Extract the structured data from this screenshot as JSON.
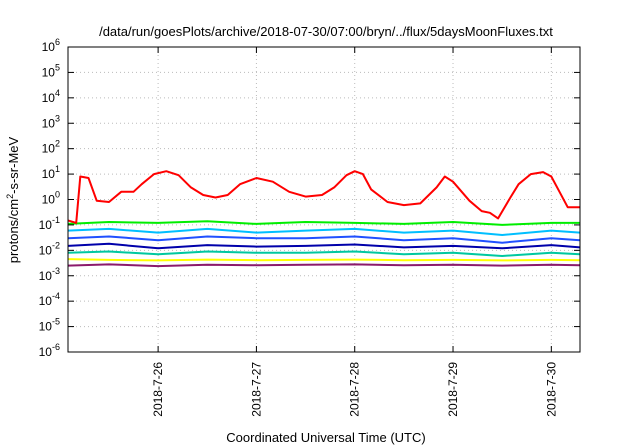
{
  "chart_data": {
    "type": "line",
    "title": "/data/run/goesPlots/archive/2018-07-30/07:00/bryn/../flux/5daysMoonFluxes.txt",
    "xlabel": "Coordinated Universal Time (UTC)",
    "ylabel": {
      "base": "protons/cm",
      "sup": "2",
      "rest": "-s-sr-MeV"
    },
    "y_scale": "log",
    "ylim_exp": [
      -6,
      6
    ],
    "xlim": [
      "2018-07-25T02:00",
      "2018-07-30T07:00"
    ],
    "x_ticks": [
      {
        "label": "2018-7-26",
        "t": "2018-07-26T00:00"
      },
      {
        "label": "2018-7-27",
        "t": "2018-07-27T00:00"
      },
      {
        "label": "2018-7-28",
        "t": "2018-07-28T00:00"
      },
      {
        "label": "2018-7-29",
        "t": "2018-07-29T00:00"
      },
      {
        "label": "2018-7-30",
        "t": "2018-07-30T00:00"
      }
    ],
    "y_ticks": [
      {
        "base": "10",
        "exp": "6"
      },
      {
        "base": "10",
        "exp": "5"
      },
      {
        "base": "10",
        "exp": "4"
      },
      {
        "base": "10",
        "exp": "3"
      },
      {
        "base": "10",
        "exp": "2"
      },
      {
        "base": "10",
        "exp": "1"
      },
      {
        "base": "10",
        "exp": "0"
      },
      {
        "base": "10",
        "exp": "-1"
      },
      {
        "base": "10",
        "exp": "-2"
      },
      {
        "base": "10",
        "exp": "-3"
      },
      {
        "base": "10",
        "exp": "-4"
      },
      {
        "base": "10",
        "exp": "-5"
      },
      {
        "base": "10",
        "exp": "-6"
      }
    ],
    "grid": true,
    "legend": "none",
    "series": [
      {
        "color": "#ff0000",
        "x": [
          "2018-07-25T02:00",
          "2018-07-25T04:00",
          "2018-07-25T05:00",
          "2018-07-25T07:00",
          "2018-07-25T09:00",
          "2018-07-25T12:00",
          "2018-07-25T15:00",
          "2018-07-25T18:00",
          "2018-07-25T20:00",
          "2018-07-25T23:00",
          "2018-07-26T02:00",
          "2018-07-26T05:00",
          "2018-07-26T08:00",
          "2018-07-26T11:00",
          "2018-07-26T14:00",
          "2018-07-26T17:00",
          "2018-07-26T20:00",
          "2018-07-27T00:00",
          "2018-07-27T04:00",
          "2018-07-27T08:00",
          "2018-07-27T12:00",
          "2018-07-27T16:00",
          "2018-07-27T19:00",
          "2018-07-27T22:00",
          "2018-07-28T00:00",
          "2018-07-28T02:00",
          "2018-07-28T04:00",
          "2018-07-28T08:00",
          "2018-07-28T12:00",
          "2018-07-28T16:00",
          "2018-07-28T20:00",
          "2018-07-28T22:00",
          "2018-07-29T00:00",
          "2018-07-29T04:00",
          "2018-07-29T07:00",
          "2018-07-29T09:00",
          "2018-07-29T11:00",
          "2018-07-29T14:00",
          "2018-07-29T16:00",
          "2018-07-29T19:00",
          "2018-07-29T22:00",
          "2018-07-30T00:00",
          "2018-07-30T02:00",
          "2018-07-30T04:00",
          "2018-07-30T07:00"
        ],
        "y": [
          0.15,
          0.12,
          8,
          7,
          0.9,
          0.8,
          2,
          2,
          4,
          10,
          13,
          9,
          3,
          1.5,
          1.2,
          1.5,
          4,
          7,
          5,
          2,
          1.3,
          1.5,
          3,
          9,
          13,
          10,
          2.5,
          0.8,
          0.6,
          0.7,
          3,
          8,
          5,
          0.9,
          0.35,
          0.3,
          0.18,
          1.2,
          4,
          10,
          12,
          8,
          2,
          0.5,
          0.5
        ]
      },
      {
        "color": "#00ee00",
        "x": [
          "2018-07-25T02:00",
          "2018-07-25T12:00",
          "2018-07-26T00:00",
          "2018-07-26T12:00",
          "2018-07-27T00:00",
          "2018-07-27T12:00",
          "2018-07-28T00:00",
          "2018-07-28T12:00",
          "2018-07-29T00:00",
          "2018-07-29T12:00",
          "2018-07-30T00:00",
          "2018-07-30T07:00"
        ],
        "y": [
          0.11,
          0.13,
          0.12,
          0.14,
          0.11,
          0.13,
          0.12,
          0.11,
          0.13,
          0.1,
          0.12,
          0.12
        ]
      },
      {
        "color": "#00bfff",
        "x": [
          "2018-07-25T02:00",
          "2018-07-25T12:00",
          "2018-07-26T00:00",
          "2018-07-26T12:00",
          "2018-07-27T00:00",
          "2018-07-27T12:00",
          "2018-07-28T00:00",
          "2018-07-28T12:00",
          "2018-07-29T00:00",
          "2018-07-29T12:00",
          "2018-07-30T00:00",
          "2018-07-30T07:00"
        ],
        "y": [
          0.06,
          0.07,
          0.05,
          0.07,
          0.05,
          0.06,
          0.07,
          0.05,
          0.06,
          0.04,
          0.06,
          0.05
        ]
      },
      {
        "color": "#2050ff",
        "x": [
          "2018-07-25T02:00",
          "2018-07-25T12:00",
          "2018-07-26T00:00",
          "2018-07-26T12:00",
          "2018-07-27T00:00",
          "2018-07-27T12:00",
          "2018-07-28T00:00",
          "2018-07-28T12:00",
          "2018-07-29T00:00",
          "2018-07-29T12:00",
          "2018-07-30T00:00",
          "2018-07-30T07:00"
        ],
        "y": [
          0.03,
          0.035,
          0.025,
          0.035,
          0.03,
          0.03,
          0.035,
          0.025,
          0.03,
          0.02,
          0.03,
          0.025
        ]
      },
      {
        "color": "#0000aa",
        "x": [
          "2018-07-25T02:00",
          "2018-07-25T12:00",
          "2018-07-26T00:00",
          "2018-07-26T12:00",
          "2018-07-27T00:00",
          "2018-07-27T12:00",
          "2018-07-28T00:00",
          "2018-07-28T12:00",
          "2018-07-29T00:00",
          "2018-07-29T12:00",
          "2018-07-30T00:00",
          "2018-07-30T07:00"
        ],
        "y": [
          0.015,
          0.018,
          0.012,
          0.016,
          0.014,
          0.015,
          0.017,
          0.013,
          0.015,
          0.012,
          0.016,
          0.013
        ]
      },
      {
        "color": "#00c8a0",
        "x": [
          "2018-07-25T02:00",
          "2018-07-25T12:00",
          "2018-07-26T00:00",
          "2018-07-26T12:00",
          "2018-07-27T00:00",
          "2018-07-27T12:00",
          "2018-07-28T00:00",
          "2018-07-28T12:00",
          "2018-07-29T00:00",
          "2018-07-29T12:00",
          "2018-07-30T00:00",
          "2018-07-30T07:00"
        ],
        "y": [
          0.008,
          0.009,
          0.007,
          0.009,
          0.008,
          0.008,
          0.009,
          0.007,
          0.008,
          0.006,
          0.008,
          0.007
        ]
      },
      {
        "color": "#ffff00",
        "x": [
          "2018-07-25T02:00",
          "2018-07-25T12:00",
          "2018-07-26T00:00",
          "2018-07-26T12:00",
          "2018-07-27T00:00",
          "2018-07-27T12:00",
          "2018-07-28T00:00",
          "2018-07-28T12:00",
          "2018-07-29T00:00",
          "2018-07-29T12:00",
          "2018-07-30T00:00",
          "2018-07-30T07:00"
        ],
        "y": [
          0.0045,
          0.0042,
          0.004,
          0.0043,
          0.0041,
          0.0042,
          0.0043,
          0.0041,
          0.0042,
          0.004,
          0.0042,
          0.0041
        ]
      },
      {
        "color": "#8b1a6b",
        "x": [
          "2018-07-25T02:00",
          "2018-07-25T12:00",
          "2018-07-26T00:00",
          "2018-07-26T12:00",
          "2018-07-27T00:00",
          "2018-07-27T12:00",
          "2018-07-28T00:00",
          "2018-07-28T12:00",
          "2018-07-29T00:00",
          "2018-07-29T12:00",
          "2018-07-30T00:00",
          "2018-07-30T07:00"
        ],
        "y": [
          0.0025,
          0.0028,
          0.0024,
          0.0027,
          0.0026,
          0.0027,
          0.0028,
          0.0026,
          0.0027,
          0.0025,
          0.0027,
          0.0026
        ]
      }
    ]
  }
}
